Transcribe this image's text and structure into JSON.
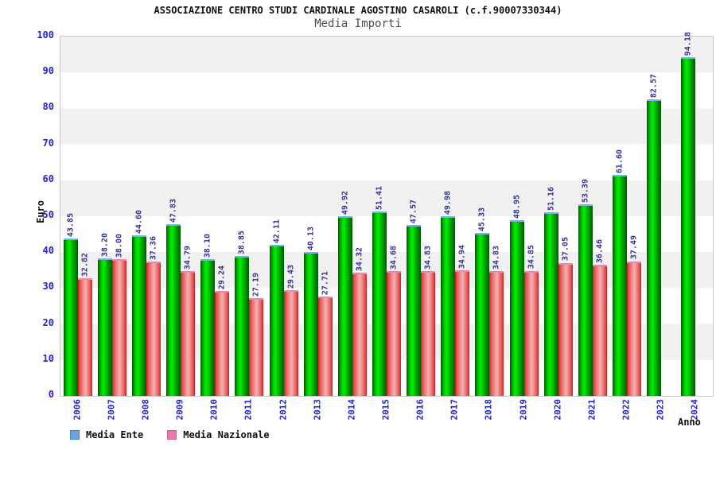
{
  "header": {
    "title": "ASSOCIAZIONE CENTRO STUDI CARDINALE AGOSTINO CASAROLI (c.f.90007330344)",
    "subtitle": "Media Importi"
  },
  "axes": {
    "y_label": "Euro",
    "x_label": "Anno",
    "y_ticks": [
      100,
      90,
      80,
      70,
      60,
      50,
      40,
      30,
      20,
      10,
      0
    ]
  },
  "legend": {
    "items": [
      {
        "label": "Media Ente",
        "swatch_fill": "#6fa3dc",
        "swatch_border": "#3d85c6"
      },
      {
        "label": "Media Nazionale",
        "swatch_fill": "#ea7bab",
        "swatch_border": "#d5569a"
      }
    ]
  },
  "colors": {
    "band_gray": "#f1f1f1",
    "plot_border": "#c8c8c8",
    "tick_label_blue": "#2424cc",
    "value_label_navy": "#333399",
    "green_bright": "#00ef00",
    "green_dark": "#015a01",
    "green_cap_blue": "#79aeea",
    "red_edge": "#c81d1d",
    "red_center_pink": "#f3a9a9",
    "red_cap_pink": "#ef86ad"
  },
  "chart_data": {
    "type": "bar",
    "title": "ASSOCIAZIONE CENTRO STUDI CARDINALE AGOSTINO CASAROLI (c.f.90007330344)",
    "subtitle": "Media Importi",
    "xlabel": "Anno",
    "ylabel": "Euro",
    "ylim": [
      0,
      100
    ],
    "grid": "horizontal bands every 10 units, alternating gray/white",
    "legend_position": "bottom-left",
    "value_label_format": "two decimals, rotated 90deg above each bar",
    "categories": [
      "2006",
      "2007",
      "2008",
      "2009",
      "2010",
      "2011",
      "2012",
      "2013",
      "2014",
      "2015",
      "2016",
      "2017",
      "2018",
      "2019",
      "2020",
      "2021",
      "2022",
      "2023",
      "2024"
    ],
    "series": [
      {
        "name": "Media Ente",
        "bar_style": "green gradient, light-blue top cap",
        "values": [
          43.85,
          38.2,
          44.6,
          47.83,
          38.1,
          38.85,
          42.11,
          40.13,
          49.92,
          51.41,
          47.57,
          49.98,
          45.33,
          48.95,
          51.16,
          53.39,
          61.6,
          82.57,
          94.18
        ]
      },
      {
        "name": "Media Nazionale",
        "bar_style": "red gradient with pink center, pink top cap",
        "values": [
          32.82,
          38.0,
          37.36,
          34.79,
          29.24,
          27.19,
          29.43,
          27.71,
          34.32,
          34.68,
          34.83,
          34.94,
          34.83,
          34.85,
          37.05,
          36.46,
          37.49,
          null,
          null
        ]
      }
    ]
  }
}
